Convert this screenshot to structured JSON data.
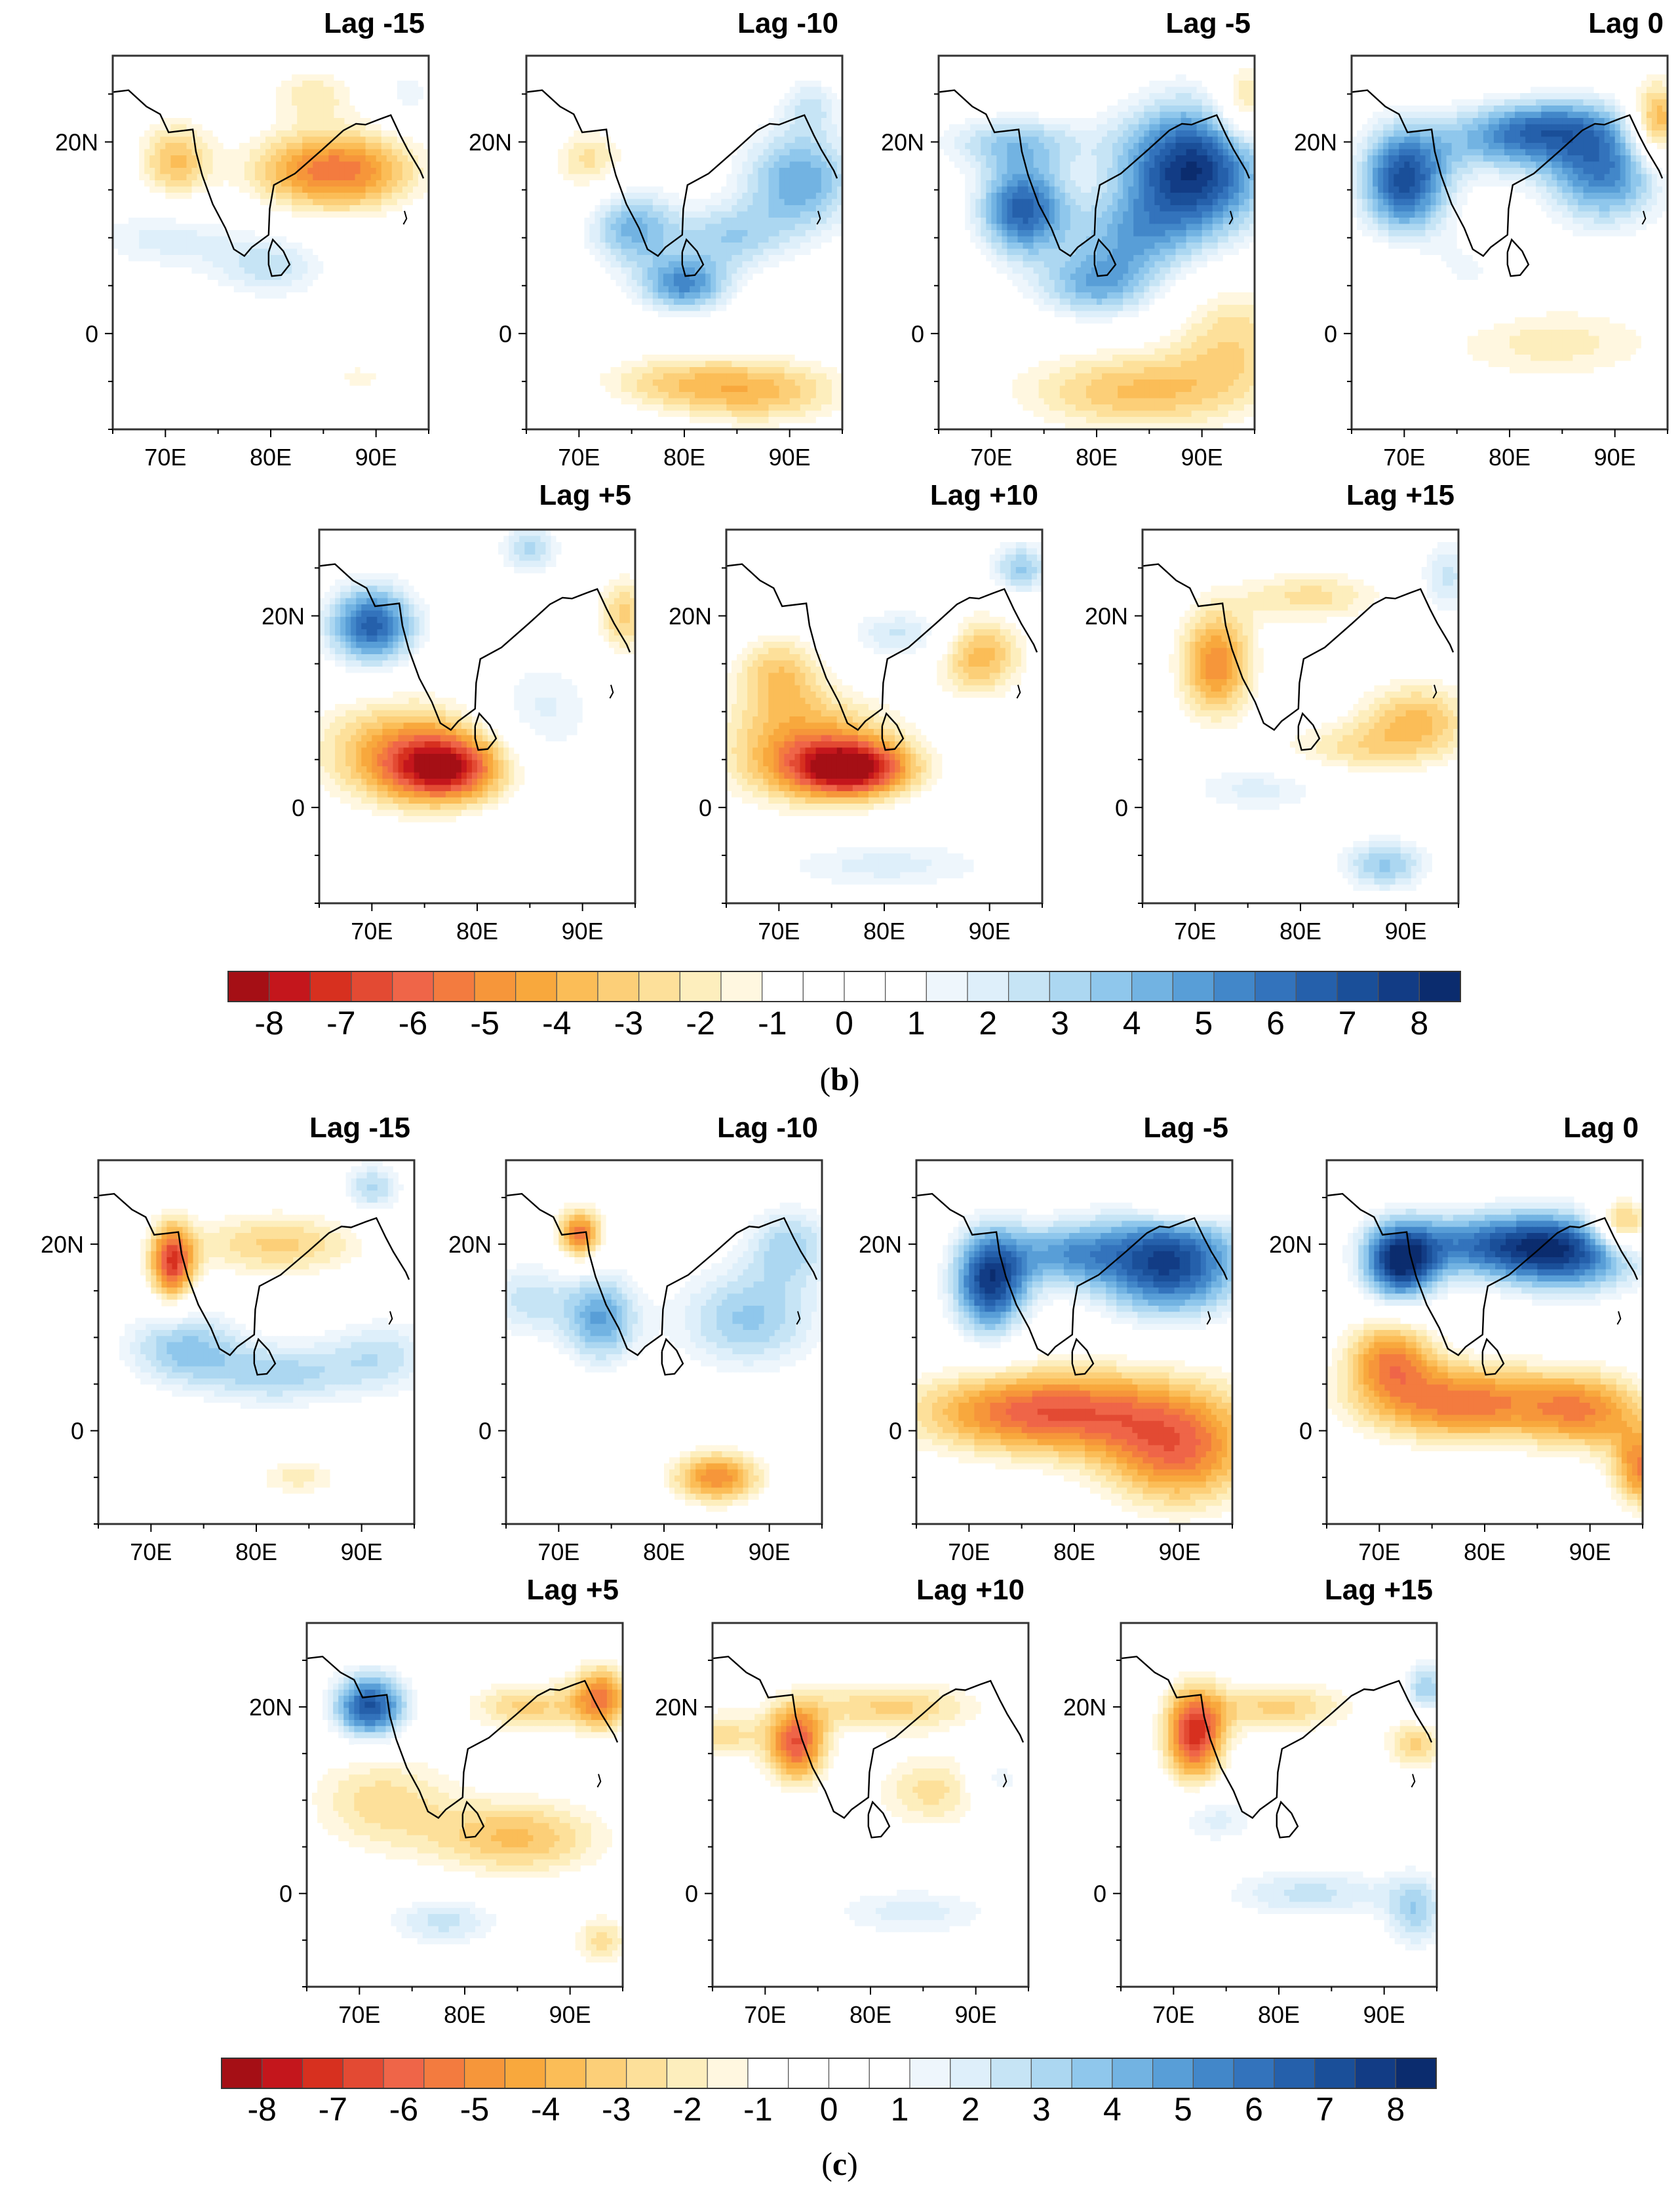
{
  "chart_data": [
    {
      "type": "heatmap",
      "panel_label": "b",
      "x_ticks": [
        "70E",
        "80E",
        "90E"
      ],
      "y_ticks": [
        "20N",
        "0"
      ],
      "colorbar": {
        "ticks": [
          "-8",
          "-7",
          "-6",
          "-5",
          "-4",
          "-3",
          "-2",
          "-1",
          "0",
          "1",
          "2",
          "3",
          "4",
          "5",
          "6",
          "7",
          "8"
        ],
        "colors": [
          "#a50f15",
          "#c4161c",
          "#d7301f",
          "#e34a33",
          "#ef6548",
          "#f37b3f",
          "#f6963a",
          "#f8a83d",
          "#fbbd57",
          "#fccf78",
          "#fde09a",
          "#fdeebd",
          "#fff7e0",
          "#ffffff",
          "#ffffff",
          "#ffffff",
          "#ffffff",
          "#eef6fc",
          "#deeffa",
          "#c6e4f5",
          "#acd7f1",
          "#8fc7ec",
          "#72b3e2",
          "#589ed7",
          "#4287c9",
          "#3373bc",
          "#2560ab",
          "#1a4f99",
          "#123c85",
          "#0b2c6e"
        ]
      },
      "panels": [
        {
          "title": "Lag -15",
          "features": [
            [
              -4.5,
              88,
              17,
              4.5,
              3
            ],
            [
              -3.5,
              71,
              18,
              2.5,
              3
            ],
            [
              -2.5,
              82,
              17,
              4,
              3
            ],
            [
              -2,
              84,
              25,
              3,
              2
            ],
            [
              2.5,
              80,
              7,
              4,
              2.5
            ],
            [
              2,
              70,
              10,
              5,
              2.5
            ],
            [
              1.5,
              93,
              25,
              2,
              2
            ],
            [
              -2,
              88,
              -5,
              3,
              1.5
            ],
            [
              1,
              87,
              -6,
              3,
              1.5
            ]
          ]
        },
        {
          "title": "Lag -10",
          "features": [
            [
              4.5,
              91,
              16,
              4,
              4
            ],
            [
              5,
              80,
              5,
              3,
              2
            ],
            [
              4,
              75,
              11,
              3,
              3
            ],
            [
              3,
              84,
              10,
              4,
              2.5
            ],
            [
              -2.5,
              71,
              18,
              2.5,
              2.5
            ],
            [
              -3.5,
              87,
              -6,
              6,
              2.5
            ],
            [
              -2,
              78,
              -5,
              5,
              2
            ],
            [
              2,
              92,
              24,
              2,
              2
            ]
          ]
        },
        {
          "title": "Lag -5",
          "features": [
            [
              8,
              89,
              17,
              5,
              5
            ],
            [
              6.5,
              73,
              13,
              3,
              3.5
            ],
            [
              4,
              80,
              5,
              4,
              2.5
            ],
            [
              3,
              72,
              20,
              5,
              2
            ],
            [
              3,
              83,
              10,
              4,
              3
            ],
            [
              -3.5,
              84,
              -6,
              8,
              3
            ],
            [
              -2.5,
              93,
              0,
              4,
              4
            ],
            [
              -3.5,
              94,
              24,
              2,
              3
            ]
          ]
        },
        {
          "title": "Lag 0",
          "features": [
            [
              7,
              70,
              16,
              3,
              4
            ],
            [
              5.5,
              89,
              17,
              4,
              4
            ],
            [
              4,
              80,
              20,
              5,
              2.5
            ],
            [
              3,
              84,
              22,
              5,
              2
            ],
            [
              -5,
              94,
              22,
              2,
              3
            ],
            [
              -2,
              84,
              -1,
              8,
              3
            ],
            [
              1.5,
              75,
              6,
              4,
              3
            ],
            [
              -1.5,
              70,
              5,
              3,
              3
            ]
          ]
        }
      ],
      "panels_row2": [
        {
          "title": "Lag +5",
          "features": [
            [
              6.5,
              70,
              19,
              3,
              3
            ],
            [
              -6,
              77,
              4,
              4,
              2.5
            ],
            [
              -4,
              73,
              6,
              6,
              4
            ],
            [
              3,
              85,
              27,
              2,
              2
            ],
            [
              -3,
              94,
              20,
              2,
              3
            ],
            [
              2,
              86,
              10,
              4,
              4
            ],
            [
              1,
              82,
              -6,
              6,
              2
            ]
          ]
        },
        {
          "title": "Lag +10",
          "features": [
            [
              -6.5,
              77,
              4,
              4,
              2
            ],
            [
              -4.5,
              73,
              6,
              6,
              4
            ],
            [
              -4,
              89,
              16,
              3,
              3
            ],
            [
              -3,
              70,
              14,
              3,
              3
            ],
            [
              3.5,
              93,
              25,
              2,
              2
            ],
            [
              2,
              80,
              -6,
              8,
              2
            ],
            [
              2.5,
              82,
              18,
              4,
              2
            ]
          ]
        },
        {
          "title": "Lag +15",
          "features": [
            [
              -5,
              72,
              15,
              2.5,
              4
            ],
            [
              -3.5,
              91,
              9,
              4,
              3
            ],
            [
              -2.5,
              81,
              22,
              5,
              2
            ],
            [
              3.5,
              88,
              -6,
              3,
              2
            ],
            [
              2.5,
              94,
              24,
              2,
              3
            ],
            [
              2,
              76,
              2,
              5,
              2
            ],
            [
              -2,
              84,
              6,
              5,
              2
            ]
          ]
        }
      ]
    },
    {
      "type": "heatmap",
      "panel_label": "c",
      "x_ticks": [
        "70E",
        "80E",
        "90E"
      ],
      "y_ticks": [
        "20N",
        "0"
      ],
      "colorbar": {
        "ticks": [
          "-8",
          "-7",
          "-6",
          "-5",
          "-4",
          "-3",
          "-2",
          "-1",
          "0",
          "1",
          "2",
          "3",
          "4",
          "5",
          "6",
          "7",
          "8"
        ],
        "colors": [
          "#a50f15",
          "#c4161c",
          "#d7301f",
          "#e34a33",
          "#ef6548",
          "#f37b3f",
          "#f6963a",
          "#f8a83d",
          "#fbbd57",
          "#fccf78",
          "#fde09a",
          "#fdeebd",
          "#fff7e0",
          "#ffffff",
          "#ffffff",
          "#ffffff",
          "#ffffff",
          "#eef6fc",
          "#deeffa",
          "#c6e4f5",
          "#acd7f1",
          "#8fc7ec",
          "#72b3e2",
          "#589ed7",
          "#4287c9",
          "#3373bc",
          "#2560ab",
          "#1a4f99",
          "#123c85",
          "#0b2c6e"
        ]
      },
      "panels": [
        {
          "title": "Lag -15",
          "features": [
            [
              -6.5,
              72,
              18,
              1.5,
              3
            ],
            [
              -3,
              82,
              20,
              6,
              2.5
            ],
            [
              3.5,
              73,
              9,
              4,
              3
            ],
            [
              3,
              82,
              6,
              5,
              2.5
            ],
            [
              2.5,
              92,
              8,
              4,
              3
            ],
            [
              3,
              91,
              26,
              2,
              2
            ],
            [
              -2,
              84,
              -5,
              3,
              1.5
            ]
          ]
        },
        {
          "title": "Lag -10",
          "features": [
            [
              -5.5,
              72,
              21,
              1.5,
              2
            ],
            [
              4.5,
              74,
              12,
              2.5,
              3.5
            ],
            [
              3.5,
              88,
              12,
              5,
              4
            ],
            [
              3,
              92,
              20,
              3,
              3
            ],
            [
              -5,
              85,
              -5,
              3,
              2
            ],
            [
              2.5,
              67,
              14,
              3,
              3
            ]
          ]
        },
        {
          "title": "Lag -5",
          "features": [
            [
              7.5,
              72,
              16,
              2.5,
              4
            ],
            [
              7.5,
              89,
              18,
              5,
              4
            ],
            [
              4,
              79,
              19,
              4,
              2.5
            ],
            [
              -4,
              75,
              2,
              8,
              3
            ],
            [
              -4.5,
              90,
              -3,
              5,
              4
            ],
            [
              -3,
              84,
              2,
              10,
              4
            ],
            [
              -2.5,
              90,
              24,
              3,
              1.5
            ]
          ]
        },
        {
          "title": "Lag 0",
          "features": [
            [
              7.5,
              72,
              18,
              2.5,
              3
            ],
            [
              6,
              88,
              19,
              5,
              3
            ],
            [
              5,
              80,
              20,
              6,
              2.5
            ],
            [
              -5.5,
              78,
              3,
              7,
              3
            ],
            [
              -4.5,
              71,
              8,
              3,
              3
            ],
            [
              -4,
              90,
              2,
              4,
              3
            ],
            [
              -5,
              95,
              -4,
              2,
              3
            ],
            [
              -5,
              93,
              22,
              2,
              2
            ]
          ]
        }
      ],
      "panels_row2": [
        {
          "title": "Lag +5",
          "features": [
            [
              7,
              71,
              20,
              2.5,
              2.5
            ],
            [
              -5,
              93,
              21,
              2,
              2.5
            ],
            [
              -3.5,
              85,
              6,
              6,
              3
            ],
            [
              -2.5,
              72,
              10,
              5,
              4
            ],
            [
              -3,
              86,
              20,
              4,
              2
            ],
            [
              2.5,
              78,
              -3,
              4,
              2
            ],
            [
              -2.5,
              93,
              -5,
              2,
              2
            ]
          ]
        },
        {
          "title": "Lag +10",
          "features": [
            [
              -6,
              73,
              16,
              2,
              3
            ],
            [
              -3,
              82,
              20,
              6,
              2
            ],
            [
              -2.5,
              86,
              11,
              4,
              3
            ],
            [
              -2.5,
              66,
              17,
              3,
              2
            ],
            [
              2,
              84,
              -2,
              6,
              2
            ],
            [
              2,
              92,
              12,
              2,
              2
            ]
          ]
        },
        {
          "title": "Lag +15",
          "features": [
            [
              -7,
              72,
              17,
              2,
              3.5
            ],
            [
              -3,
              80,
              20,
              5,
              2
            ],
            [
              -3,
              93,
              16,
              2,
              2
            ],
            [
              3.5,
              94,
              22,
              1.5,
              2
            ],
            [
              3,
              93,
              -2,
              2,
              3
            ],
            [
              2.5,
              83,
              0,
              6,
              2
            ],
            [
              2,
              74,
              8,
              3,
              2
            ]
          ]
        }
      ]
    }
  ]
}
